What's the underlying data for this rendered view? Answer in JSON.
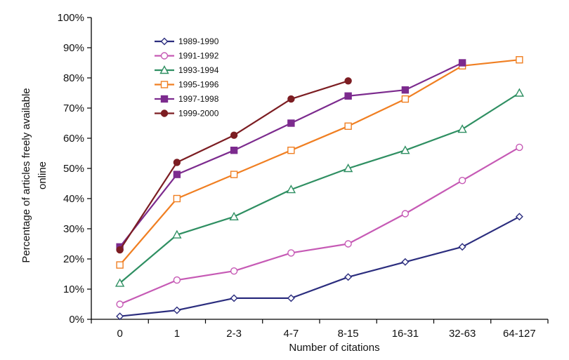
{
  "chart_data": {
    "type": "line",
    "title": "",
    "xlabel": "Number of citations",
    "ylabel_lines": [
      "Percentage of articles freely available",
      "online"
    ],
    "categories": [
      "0",
      "1",
      "2-3",
      "4-7",
      "8-15",
      "16-31",
      "32-63",
      "64-127"
    ],
    "ylim": [
      0,
      100
    ],
    "y_ticks": [
      "0%",
      "10%",
      "20%",
      "30%",
      "40%",
      "50%",
      "60%",
      "70%",
      "80%",
      "90%",
      "100%"
    ],
    "grid": false,
    "legend_position": "top-left",
    "series": [
      {
        "name": "1989-1990",
        "color": "#2b2d7e",
        "marker": "diamond-open",
        "values": [
          1,
          3,
          7,
          7,
          14,
          19,
          24,
          34
        ]
      },
      {
        "name": "1991-1992",
        "color": "#c65ab5",
        "marker": "circle-open",
        "values": [
          5,
          13,
          16,
          22,
          25,
          35,
          46,
          57
        ]
      },
      {
        "name": "1993-1994",
        "color": "#2f8f62",
        "marker": "triangle-open",
        "values": [
          12,
          28,
          34,
          43,
          50,
          56,
          63,
          75
        ]
      },
      {
        "name": "1995-1996",
        "color": "#f07f22",
        "marker": "square-open",
        "values": [
          18,
          40,
          48,
          56,
          64,
          73,
          84,
          86
        ]
      },
      {
        "name": "1997-1998",
        "color": "#7c2b8e",
        "marker": "square-filled",
        "values": [
          24,
          48,
          56,
          65,
          74,
          76,
          85,
          null
        ]
      },
      {
        "name": "1999-2000",
        "color": "#7c1d22",
        "marker": "circle-filled",
        "values": [
          23,
          52,
          61,
          73,
          79,
          null,
          null,
          null
        ]
      }
    ]
  }
}
